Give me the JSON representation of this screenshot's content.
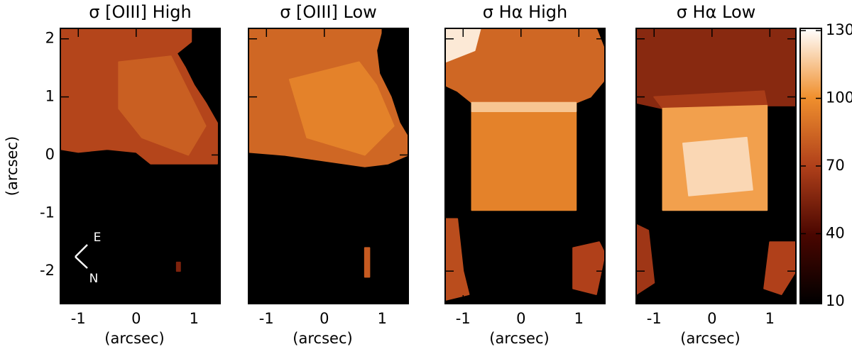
{
  "chart_data": [
    {
      "type": "heatmap",
      "title": "σ [OIII] High",
      "xlabel": "(arcsec)",
      "ylabel": "(arcsec)",
      "xlim": [
        -1.31,
        1.45
      ],
      "ylim": [
        -2.56,
        2.18
      ],
      "xticks": [
        -1,
        0,
        1
      ],
      "yticks": [
        -2,
        -1,
        0,
        1,
        2
      ],
      "regions": [
        {
          "polygon": [
            [
              -1.31,
              2.18
            ],
            [
              0.95,
              2.18
            ],
            [
              0.95,
              1.95
            ],
            [
              0.7,
              1.75
            ],
            [
              0.85,
              1.5
            ],
            [
              1.0,
              1.2
            ],
            [
              1.2,
              0.9
            ],
            [
              1.4,
              0.55
            ],
            [
              1.4,
              -0.15
            ],
            [
              0.25,
              -0.15
            ],
            [
              0.0,
              0.05
            ],
            [
              -0.5,
              0.1
            ],
            [
              -1.0,
              0.05
            ],
            [
              -1.31,
              0.1
            ]
          ],
          "value": 72
        },
        {
          "polygon": [
            [
              -0.3,
              1.6
            ],
            [
              0.6,
              1.7
            ],
            [
              0.9,
              1.1
            ],
            [
              1.2,
              0.5
            ],
            [
              0.9,
              0.0
            ],
            [
              0.1,
              0.3
            ],
            [
              -0.3,
              0.8
            ]
          ],
          "value": 82
        },
        {
          "polygon": [
            [
              0.7,
              -1.85
            ],
            [
              0.76,
              -1.85
            ],
            [
              0.76,
              -2.0
            ],
            [
              0.7,
              -2.0
            ]
          ],
          "value": 55
        }
      ]
    },
    {
      "type": "heatmap",
      "title": "σ [OIII] Low",
      "xlabel": "(arcsec)",
      "xlim": [
        -1.31,
        1.45
      ],
      "ylim": [
        -2.56,
        2.18
      ],
      "xticks": [
        -1,
        0,
        1
      ],
      "yticks": [
        -2,
        -1,
        0,
        1,
        2
      ],
      "regions": [
        {
          "polygon": [
            [
              -1.31,
              2.18
            ],
            [
              1.0,
              2.18
            ],
            [
              0.9,
              1.8
            ],
            [
              0.95,
              1.4
            ],
            [
              1.15,
              1.0
            ],
            [
              1.3,
              0.55
            ],
            [
              1.45,
              0.3
            ],
            [
              1.45,
              0.0
            ],
            [
              1.1,
              -0.15
            ],
            [
              0.7,
              -0.2
            ],
            [
              0.0,
              -0.1
            ],
            [
              -0.7,
              0.0
            ],
            [
              -1.31,
              0.05
            ]
          ],
          "value": 85
        },
        {
          "polygon": [
            [
              -0.6,
              1.3
            ],
            [
              0.6,
              1.6
            ],
            [
              0.9,
              1.2
            ],
            [
              1.2,
              0.5
            ],
            [
              0.7,
              0.0
            ],
            [
              -0.3,
              0.3
            ]
          ],
          "value": 95
        },
        {
          "polygon": [
            [
              0.7,
              -1.6
            ],
            [
              0.78,
              -1.6
            ],
            [
              0.78,
              -2.1
            ],
            [
              0.7,
              -2.1
            ]
          ],
          "value": 80
        }
      ]
    },
    {
      "type": "heatmap",
      "title": "σ Hα High",
      "xlabel": "(arcsec)",
      "xlim": [
        -1.31,
        1.45
      ],
      "ylim": [
        -2.56,
        2.18
      ],
      "xticks": [
        -1,
        0,
        1
      ],
      "yticks": [
        -2,
        -1,
        0,
        1,
        2
      ],
      "regions": [
        {
          "polygon": [
            [
              -1.31,
              2.18
            ],
            [
              1.3,
              2.18
            ],
            [
              1.45,
              1.8
            ],
            [
              1.45,
              1.3
            ],
            [
              1.2,
              1.0
            ],
            [
              0.95,
              0.9
            ],
            [
              -0.85,
              0.9
            ],
            [
              -1.1,
              1.1
            ],
            [
              -1.31,
              1.2
            ]
          ],
          "value": 85
        },
        {
          "polygon": [
            [
              -1.31,
              2.18
            ],
            [
              -0.7,
              2.18
            ],
            [
              -0.8,
              1.8
            ],
            [
              -1.31,
              1.6
            ]
          ],
          "value": 125
        },
        {
          "polygon": [
            [
              -0.85,
              0.9
            ],
            [
              0.95,
              0.9
            ],
            [
              0.95,
              -0.95
            ],
            [
              -0.85,
              -0.95
            ]
          ],
          "value": 95
        },
        {
          "polygon": [
            [
              -0.85,
              0.9
            ],
            [
              0.95,
              0.9
            ],
            [
              0.95,
              0.75
            ],
            [
              -0.85,
              0.75
            ]
          ],
          "value": 115
        },
        {
          "polygon": [
            [
              -1.31,
              -1.1
            ],
            [
              -1.1,
              -1.1
            ],
            [
              -1.0,
              -2.0
            ],
            [
              -0.9,
              -2.4
            ],
            [
              -1.31,
              -2.5
            ]
          ],
          "value": 75
        },
        {
          "polygon": [
            [
              0.9,
              -1.6
            ],
            [
              1.35,
              -1.5
            ],
            [
              1.45,
              -1.7
            ],
            [
              1.3,
              -2.4
            ],
            [
              0.9,
              -2.3
            ]
          ],
          "value": 70
        }
      ]
    },
    {
      "type": "heatmap",
      "title": "σ Hα Low",
      "xlabel": "(arcsec)",
      "xlim": [
        -1.31,
        1.45
      ],
      "ylim": [
        -2.56,
        2.18
      ],
      "xticks": [
        -1,
        0,
        1
      ],
      "yticks": [
        -2,
        -1,
        0,
        1,
        2
      ],
      "regions": [
        {
          "polygon": [
            [
              -1.31,
              2.18
            ],
            [
              1.45,
              2.18
            ],
            [
              1.45,
              0.85
            ],
            [
              0.95,
              0.85
            ],
            [
              -0.85,
              0.8
            ],
            [
              -1.31,
              0.9
            ]
          ],
          "value": 58
        },
        {
          "polygon": [
            [
              -1.0,
              1.0
            ],
            [
              0.9,
              1.1
            ],
            [
              0.95,
              0.85
            ],
            [
              -0.85,
              0.8
            ]
          ],
          "value": 68
        },
        {
          "polygon": [
            [
              -0.85,
              0.8
            ],
            [
              0.95,
              0.85
            ],
            [
              0.95,
              -0.95
            ],
            [
              -0.85,
              -0.95
            ]
          ],
          "value": 105
        },
        {
          "polygon": [
            [
              -0.5,
              0.2
            ],
            [
              0.6,
              0.3
            ],
            [
              0.7,
              -0.6
            ],
            [
              -0.4,
              -0.7
            ]
          ],
          "value": 120
        },
        {
          "polygon": [
            [
              -1.31,
              -1.2
            ],
            [
              -1.1,
              -1.3
            ],
            [
              -1.0,
              -2.2
            ],
            [
              -1.31,
              -2.4
            ]
          ],
          "value": 65
        },
        {
          "polygon": [
            [
              1.0,
              -1.5
            ],
            [
              1.45,
              -1.5
            ],
            [
              1.45,
              -2.0
            ],
            [
              1.2,
              -2.4
            ],
            [
              0.9,
              -2.3
            ]
          ],
          "value": 70
        }
      ]
    }
  ],
  "colorbar": {
    "lim": [
      9,
      131
    ],
    "ticks": [
      10,
      40,
      70,
      100,
      130
    ],
    "colormap": [
      "#000000",
      "#4a0600",
      "#b0401a",
      "#f0902e",
      "#ffffff"
    ]
  },
  "compass": {
    "east": "E",
    "north": "N"
  }
}
